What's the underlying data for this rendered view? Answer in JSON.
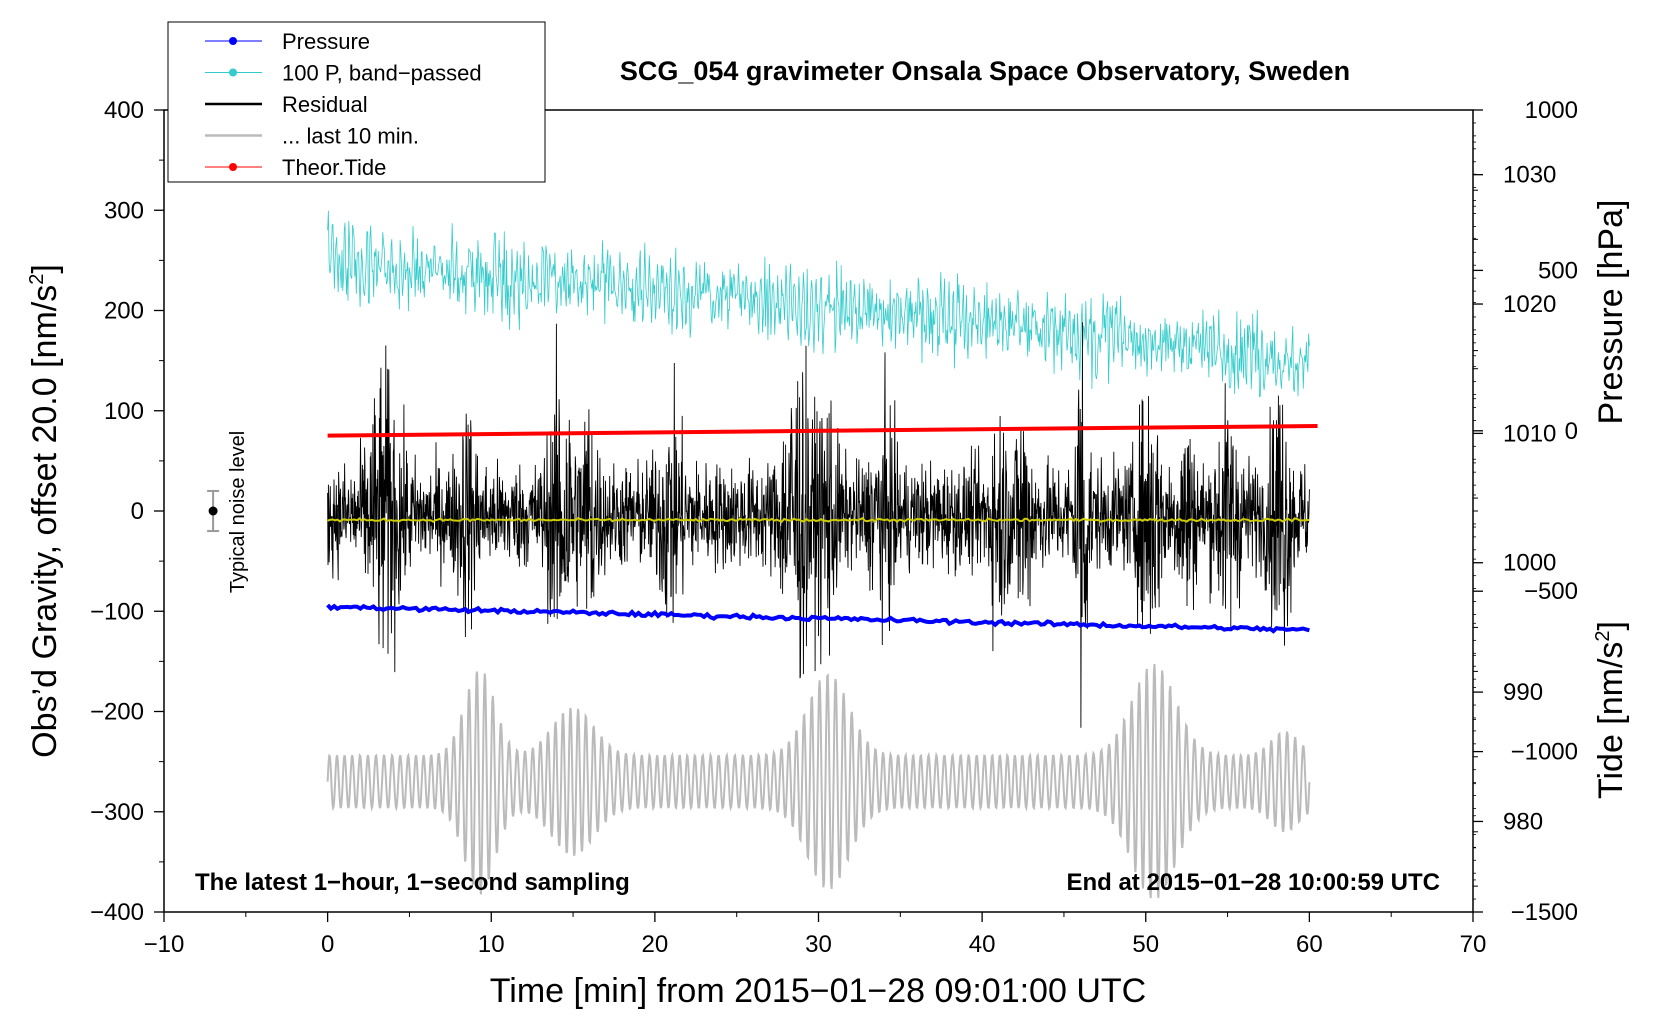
{
  "chart_data": {
    "type": "line",
    "title": "SCG_054 gravimeter Onsala Space Observatory, Sweden",
    "xlabel": "Time [min] from 2015−01−28 09:01:00 UTC",
    "ylabel": "Obs'd Gravity, offset 20.0 [nm/s²]",
    "ylabel_parts": {
      "pre": "Obs’d Gravity, offset 20.0 [nm/s",
      "sup": "2",
      "post": "]"
    },
    "y2label_pressure": "Pressure [hPa]",
    "y2label_tide": "Tide [nm/s²]",
    "y2label_tide_parts": {
      "pre": "Tide [nm/s",
      "sup": "2",
      "post": "]"
    },
    "xlim": [
      -10,
      70
    ],
    "ylim": [
      -400,
      400
    ],
    "pressure_lim": [
      973,
      1035
    ],
    "tide_lim": [
      -1500,
      1000
    ],
    "x_ticks": [
      "−10",
      "0",
      "10",
      "20",
      "30",
      "40",
      "50",
      "60",
      "70"
    ],
    "x_tick_values": [
      -10,
      0,
      10,
      20,
      30,
      40,
      50,
      60,
      70
    ],
    "y_ticks": [
      "400",
      "300",
      "200",
      "100",
      "0",
      "−100",
      "−200",
      "−300",
      "−400"
    ],
    "y_tick_values": [
      400,
      300,
      200,
      100,
      0,
      -100,
      -200,
      -300,
      -400
    ],
    "pressure_ticks": [
      "1030",
      "1020",
      "1010",
      "1000",
      "990",
      "980"
    ],
    "pressure_tick_values": [
      1030,
      1020,
      1010,
      1000,
      990,
      980
    ],
    "tide_ticks": [
      "1000",
      "500",
      "0",
      "−500",
      "−1000",
      "−1500"
    ],
    "tide_tick_values": [
      1000,
      500,
      0,
      -500,
      -1000,
      -1500
    ],
    "legend_position": "top-left",
    "legend": [
      {
        "label": "Pressure",
        "color": "#0000ff",
        "marker": true
      },
      {
        "label": "100 P, band−passed",
        "color": "#33cccc",
        "marker": true
      },
      {
        "label": "Residual",
        "color": "#000000",
        "marker": false
      },
      {
        "label": "... last 10 min.",
        "color": "#bbbbbb",
        "marker": false
      },
      {
        "label": "Theor.Tide",
        "color": "#ff0000",
        "marker": true
      }
    ],
    "annotations": {
      "left": "The latest 1−hour, 1−second sampling",
      "right": "End at 2015−01−28 10:00:59 UTC",
      "noise": "Typical noise level"
    },
    "noise_bar": {
      "x": -7,
      "y": 0,
      "err": 20
    },
    "series": [
      {
        "name": "Pressure",
        "axis": "pressure",
        "color": "#0000ff",
        "x": [
          0,
          60
        ],
        "y": [
          996.6,
          994.8
        ]
      },
      {
        "name": "100 P, band−passed",
        "axis": "gravity",
        "color": "#33cccc",
        "x": [
          0,
          10,
          20,
          30,
          40,
          50,
          60
        ],
        "y": [
          250,
          235,
          220,
          205,
          190,
          170,
          145
        ]
      },
      {
        "name": "Residual",
        "axis": "gravity",
        "color": "#000000",
        "x": [
          0,
          60
        ],
        "y": [
          -5,
          -5
        ]
      },
      {
        "name": "Residual mean",
        "axis": "gravity",
        "color": "#cccc00",
        "x": [
          0,
          60
        ],
        "y": [
          -9,
          -9
        ]
      },
      {
        "name": "... last 10 min.",
        "axis": "gravity",
        "color": "#bbbbbb",
        "x": [
          0,
          60
        ],
        "y": [
          -270,
          -270
        ]
      },
      {
        "name": "Theor.Tide",
        "axis": "tide",
        "color": "#ff0000",
        "x": [
          0,
          60.5
        ],
        "y": [
          -15,
          15
        ]
      }
    ]
  }
}
